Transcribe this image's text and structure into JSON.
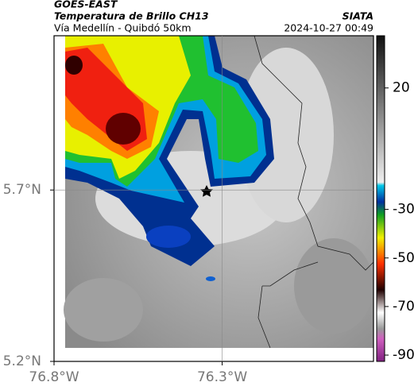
{
  "chart_data": {
    "type": "map",
    "title": "GOES-EAST",
    "subtitle": "Temperatura de Brillo CH13",
    "source": "SIATA",
    "region": "Vía Medellín - Quibdó 50km",
    "timestamp": "2024-10-27 00:49",
    "xlim": [
      -76.8,
      -75.85
    ],
    "ylim": [
      5.2,
      6.15
    ],
    "xticks": [
      {
        "value": -76.8,
        "label": "76.8°W"
      },
      {
        "value": -76.3,
        "label": "76.3°W"
      }
    ],
    "yticks": [
      {
        "value": 5.2,
        "label": "5.2°N"
      },
      {
        "value": 5.7,
        "label": "5.7°N"
      }
    ],
    "grid": true,
    "colorbar_lim": [
      -92.6,
      41.5
    ],
    "colorbar_ticks": [
      20,
      -30,
      -50,
      -70,
      -90
    ]
  }
}
